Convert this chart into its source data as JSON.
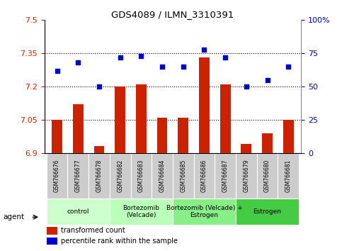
{
  "title": "GDS4089 / ILMN_3310391",
  "samples": [
    "GSM766676",
    "GSM766677",
    "GSM766678",
    "GSM766682",
    "GSM766683",
    "GSM766684",
    "GSM766685",
    "GSM766686",
    "GSM766687",
    "GSM766679",
    "GSM766680",
    "GSM766681"
  ],
  "bar_values": [
    7.05,
    7.12,
    6.93,
    7.2,
    7.21,
    7.06,
    7.06,
    7.33,
    7.21,
    6.94,
    6.99,
    7.05
  ],
  "dot_values": [
    62,
    68,
    50,
    72,
    73,
    65,
    65,
    78,
    72,
    50,
    55,
    65
  ],
  "bar_color": "#cc2200",
  "dot_color": "#0000cc",
  "ylim_left": [
    6.9,
    7.5
  ],
  "ylim_right": [
    0,
    100
  ],
  "yticks_left": [
    6.9,
    7.05,
    7.2,
    7.35,
    7.5
  ],
  "yticks_right": [
    0,
    25,
    50,
    75,
    100
  ],
  "ytick_labels_left": [
    "6.9",
    "7.05",
    "7.2",
    "7.35",
    "7.5"
  ],
  "ytick_labels_right": [
    "0",
    "25",
    "50",
    "75",
    "100%"
  ],
  "hlines": [
    7.05,
    7.2,
    7.35
  ],
  "group_data": [
    {
      "label": "control",
      "indices": [
        0,
        1,
        2
      ],
      "color": "#ccffcc"
    },
    {
      "label": "Bortezomib\n(Velcade)",
      "indices": [
        3,
        4,
        5
      ],
      "color": "#bbffbb"
    },
    {
      "label": "Bortezomib (Velcade) +\nEstrogen",
      "indices": [
        6,
        7,
        8
      ],
      "color": "#88ee88"
    },
    {
      "label": "Estrogen",
      "indices": [
        9,
        10,
        11
      ],
      "color": "#44cc44"
    }
  ],
  "legend_bar_label": "transformed count",
  "legend_dot_label": "percentile rank within the sample",
  "agent_label": "agent",
  "base_value": 6.9,
  "cell_bg_color": "#cccccc",
  "cell_edge_color": "#ffffff",
  "plot_bg_color": "#ffffff"
}
